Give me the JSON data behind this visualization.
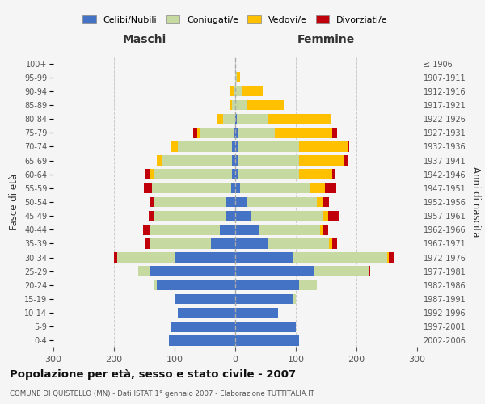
{
  "age_groups": [
    "0-4",
    "5-9",
    "10-14",
    "15-19",
    "20-24",
    "25-29",
    "30-34",
    "35-39",
    "40-44",
    "45-49",
    "50-54",
    "55-59",
    "60-64",
    "65-69",
    "70-74",
    "75-79",
    "80-84",
    "85-89",
    "90-94",
    "95-99",
    "100+"
  ],
  "birth_years": [
    "2002-2006",
    "1997-2001",
    "1992-1996",
    "1987-1991",
    "1982-1986",
    "1977-1981",
    "1972-1976",
    "1967-1971",
    "1962-1966",
    "1957-1961",
    "1952-1956",
    "1947-1951",
    "1942-1946",
    "1937-1941",
    "1932-1936",
    "1927-1931",
    "1922-1926",
    "1917-1921",
    "1912-1916",
    "1907-1911",
    "≤ 1906"
  ],
  "males": {
    "celibi": [
      110,
      105,
      95,
      100,
      130,
      140,
      100,
      40,
      25,
      15,
      15,
      7,
      5,
      5,
      5,
      3,
      0,
      0,
      0,
      0,
      0
    ],
    "coniugati": [
      0,
      0,
      0,
      0,
      5,
      20,
      95,
      100,
      115,
      120,
      120,
      130,
      130,
      115,
      90,
      55,
      20,
      5,
      3,
      0,
      0
    ],
    "vedovi": [
      0,
      0,
      0,
      0,
      0,
      0,
      0,
      0,
      0,
      0,
      0,
      0,
      5,
      10,
      10,
      5,
      10,
      5,
      5,
      0,
      0
    ],
    "divorziati": [
      0,
      0,
      0,
      0,
      0,
      0,
      5,
      8,
      12,
      8,
      5,
      14,
      10,
      0,
      0,
      7,
      0,
      0,
      0,
      0,
      0
    ]
  },
  "females": {
    "nubili": [
      105,
      100,
      70,
      95,
      105,
      130,
      95,
      55,
      40,
      25,
      20,
      8,
      5,
      5,
      5,
      5,
      3,
      0,
      0,
      0,
      0
    ],
    "coniugate": [
      0,
      0,
      0,
      5,
      30,
      90,
      155,
      100,
      100,
      120,
      115,
      115,
      100,
      100,
      100,
      60,
      50,
      20,
      10,
      3,
      0
    ],
    "vedove": [
      0,
      0,
      0,
      0,
      0,
      0,
      3,
      5,
      5,
      8,
      10,
      25,
      55,
      75,
      80,
      95,
      105,
      60,
      35,
      5,
      0
    ],
    "divorziate": [
      0,
      0,
      0,
      0,
      0,
      3,
      10,
      8,
      8,
      18,
      10,
      18,
      5,
      5,
      3,
      8,
      0,
      0,
      0,
      0,
      0
    ]
  },
  "colors": {
    "celibi_nubili": "#4472c4",
    "coniugati_e": "#c5d9a0",
    "vedovi_e": "#ffc000",
    "divorziati_e": "#c0000b"
  },
  "title": "Popolazione per età, sesso e stato civile - 2007",
  "subtitle": "COMUNE DI QUISTELLO (MN) - Dati ISTAT 1° gennaio 2007 - Elaborazione TUTTITALIA.IT",
  "xlabel_left": "Maschi",
  "xlabel_right": "Femmine",
  "ylabel_left": "Fasce di età",
  "ylabel_right": "Anni di nascita",
  "xlim": 300,
  "background_color": "#f5f5f5",
  "grid_color": "#cccccc",
  "bar_height": 0.75
}
